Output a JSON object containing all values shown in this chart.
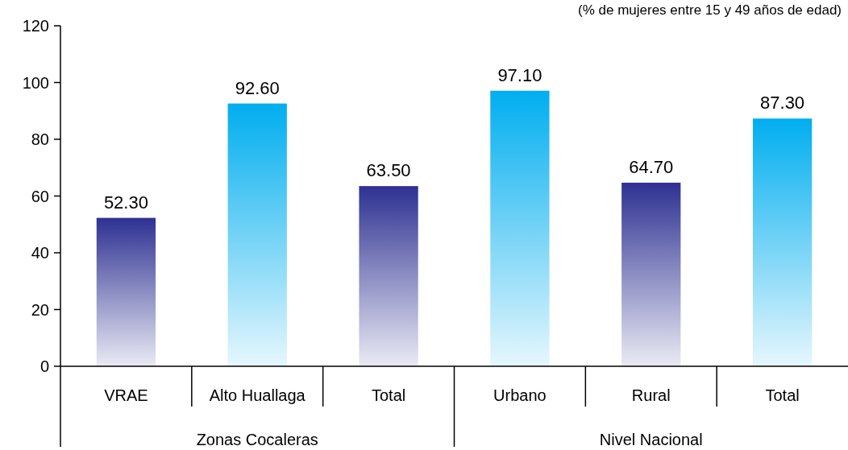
{
  "chart_data": {
    "type": "bar",
    "subtitle": "(% de mujeres entre 15 y 49 años de edad)",
    "categories": [
      "VRAE",
      "Alto Huallaga",
      "Total",
      "Urbano",
      "Rural",
      "Total"
    ],
    "values": [
      52.3,
      92.6,
      63.5,
      97.1,
      64.7,
      87.3
    ],
    "colors": [
      "#2e3192",
      "#00aeef",
      "#2e3192",
      "#00aeef",
      "#2e3192",
      "#00aeef"
    ],
    "value_labels": [
      "52.30",
      "92.60",
      "63.50",
      "97.10",
      "64.70",
      "87.30"
    ],
    "ylim": [
      0,
      120
    ],
    "yticks": [
      0,
      20,
      40,
      60,
      80,
      100,
      120
    ],
    "grid": false,
    "annotations": [
      "Zonas Cocaleras",
      "Nivel Nacional"
    ]
  }
}
